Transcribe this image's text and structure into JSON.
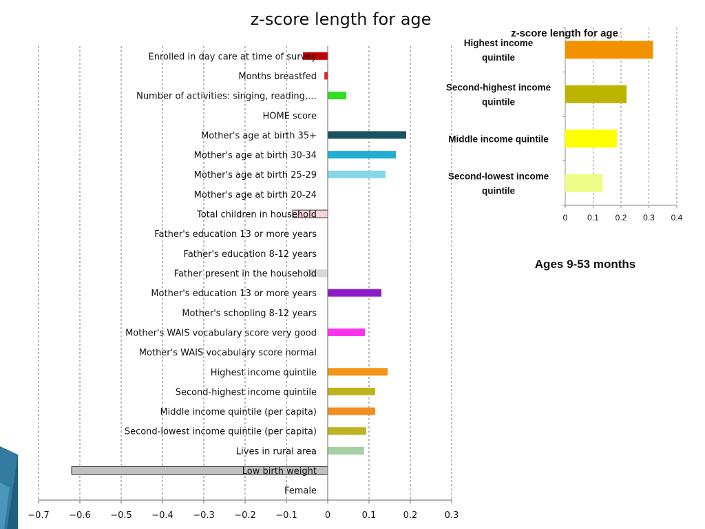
{
  "chart_data": [
    {
      "type": "bar",
      "orientation": "horizontal",
      "title": "z-score length for age",
      "categories": [
        "Enrolled in day care at time of survey",
        "Months breastfed",
        "Number of activities: singing, reading,…",
        "HOME score",
        "Mother's age at birth 35+",
        "Mother's age at birth 30-34",
        "Mother's age at birth 25-29",
        "Mother's age at birth 20-24",
        "Total children in household",
        "Father's education 13 or more years",
        "Father's education 8-12 years",
        "Father present in the household",
        "Mother's education 13 or more years",
        "Mother's schooling 8-12 years",
        "Mother's WAIS vocabulary score very good",
        "Mother's WAIS vocabulary score normal",
        "Highest income quintile",
        "Second-highest income quintile",
        "Middle income quintile (per capita)",
        "Second-lowest income quintile (per capita)",
        "Lives in rural area",
        "Low birth weight",
        "Female"
      ],
      "values": [
        -0.06,
        -0.008,
        0.045,
        0,
        0.19,
        0.165,
        0.14,
        0,
        -0.085,
        0,
        0,
        -0.05,
        0.13,
        0,
        0.09,
        0,
        0.145,
        0.115,
        0.115,
        0.093,
        0.088,
        -0.62,
        0
      ],
      "colors": [
        "#c00000",
        "#e31b23",
        "#2ee01f",
        "#cccccc",
        "#1b5263",
        "#21aed0",
        "#86d6ec",
        "#cccccc",
        "#f4d6d8",
        "#cccccc",
        "#cccccc",
        "#d9d9d9",
        "#8e1bc9",
        "#cccccc",
        "#ff33ee",
        "#cccccc",
        "#f39417",
        "#bfb41b",
        "#f58c1f",
        "#bcb422",
        "#a4cfa3",
        "#c0c0c0",
        "#cccccc"
      ],
      "outlined": [
        false,
        false,
        false,
        false,
        false,
        false,
        false,
        false,
        true,
        false,
        false,
        false,
        false,
        false,
        false,
        false,
        false,
        false,
        false,
        false,
        false,
        true,
        false
      ],
      "xlim": [
        -0.7,
        0.3
      ],
      "xticks": [
        "−0.7",
        "−0.6",
        "−0.5",
        "−0.4",
        "−0.3",
        "−0.2",
        "−0.1",
        "0",
        "0.1",
        "0.2",
        "0.3"
      ],
      "grid": true,
      "xlabel": "",
      "ylabel": ""
    },
    {
      "type": "bar",
      "orientation": "horizontal",
      "title": "z-score length for age",
      "categories": [
        [
          "Highest income",
          "quintile"
        ],
        [
          "Second-highest income",
          "quintile"
        ],
        [
          "Middle income quintile"
        ],
        [
          "Second-lowest income",
          "quintile"
        ]
      ],
      "values": [
        0.315,
        0.22,
        0.185,
        0.135
      ],
      "colors": [
        "#f39200",
        "#bcb400",
        "#ffff00",
        "#eefc8a"
      ],
      "xlim": [
        0,
        0.4
      ],
      "xticks": [
        "0",
        "0.1",
        "0.2",
        "0.3",
        "0.4"
      ],
      "grid": true,
      "xlabel": "",
      "ylabel": ""
    }
  ],
  "note": "Ages 9-53 months",
  "colors": {
    "deco_dark": "#1f5f83",
    "deco_light": "#5aa7cb"
  }
}
